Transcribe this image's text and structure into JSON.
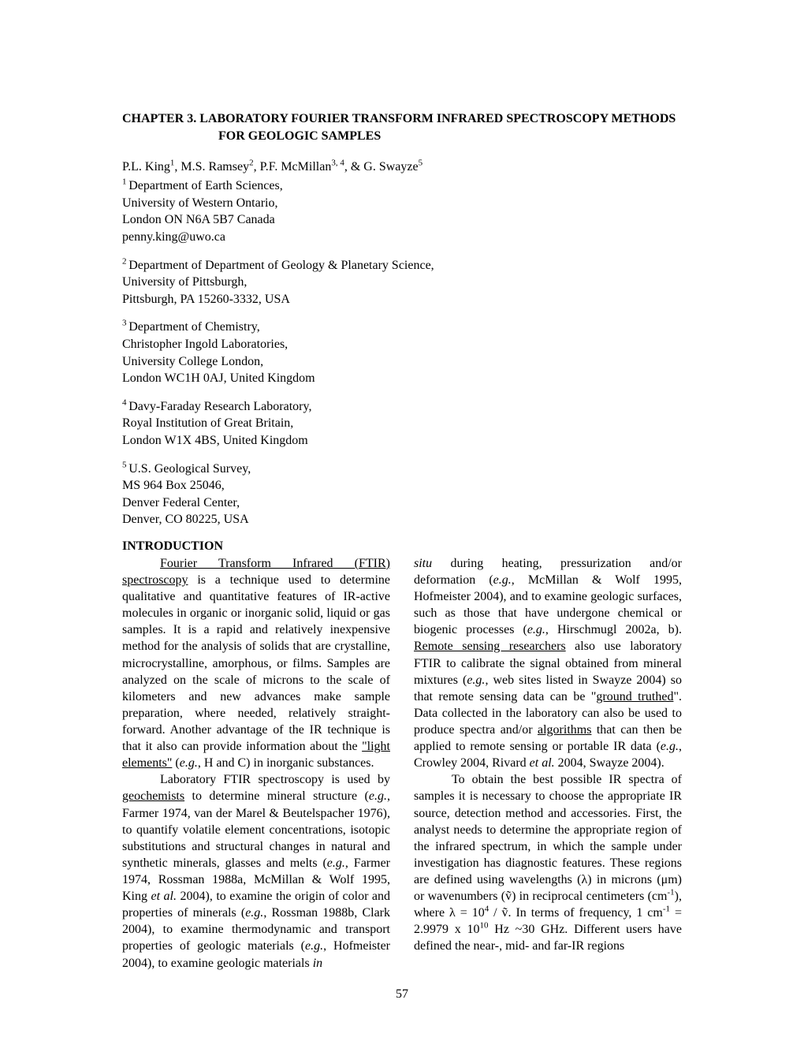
{
  "chapter": {
    "line1": "CHAPTER 3.   LABORATORY FOURIER TRANSFORM INFRARED SPECTROSCOPY METHODS",
    "line2": "FOR GEOLOGIC SAMPLES"
  },
  "authors": {
    "a1": "P.L. King",
    "s1": "1",
    "a2": ", M.S. Ramsey",
    "s2": "2",
    "a3": ", P.F. McMillan",
    "s3": "3, 4",
    "a4": ", & G. Swayze",
    "s4": "5"
  },
  "aff1": {
    "sup": "1 ",
    "l1": "Department of Earth Sciences,",
    "l2": "University of Western Ontario,",
    "l3": "London ON N6A 5B7 Canada",
    "l4": "penny.king@uwo.ca"
  },
  "aff2": {
    "sup": "2 ",
    "l1": "Department of Department of Geology & Planetary Science,",
    "l2": "University of Pittsburgh,",
    "l3": "Pittsburgh, PA 15260-3332, USA"
  },
  "aff3": {
    "sup": "3 ",
    "l1": "Department of Chemistry,",
    "l2": "Christopher Ingold Laboratories,",
    "l3": "University College London,",
    "l4": "London WC1H 0AJ, United Kingdom"
  },
  "aff4": {
    "sup": "4 ",
    "l1": "Davy-Faraday Research Laboratory,",
    "l2": "Royal Institution of Great Britain,",
    "l3": "London W1X 4BS, United Kingdom"
  },
  "aff5": {
    "sup": "5 ",
    "l1": "U.S. Geological Survey,",
    "l2": "MS 964 Box 25046,",
    "l3": "Denver Federal Center,",
    "l4": "Denver, CO 80225, USA"
  },
  "section": {
    "heading": "INTRODUCTION"
  },
  "col1": {
    "p1_u1": "Fourier Transform Infrared (FTIR) spectroscopy",
    "p1_t1": " is a technique used to determine qualitative and quantitative features of IR-active molecules in organic or inorganic solid, liquid or gas samples. It is a rapid and relatively inexpensive method for the analysis of solids that are crystalline, microcrystalline, amorphous, or films. Samples are analyzed on the scale of microns to the scale of kilometers and new advances make sample preparation, where needed, relatively straight-forward. Another advantage of the IR technique is that it also can provide information about the ",
    "p1_u2": "\"light elements\"",
    "p1_t2": " (",
    "p1_i1": "e.g.",
    "p1_t3": ", H and C) in inorganic substances.",
    "p2_t1": "Laboratory FTIR spectroscopy is used by ",
    "p2_u1": "geochemists",
    "p2_t2": " to determine mineral structure (",
    "p2_i1": "e.g.",
    "p2_t3": ", Farmer 1974, van der Marel & Beutelspacher 1976), to quantify volatile element concentrations, isotopic substitutions and structural changes in natural and synthetic minerals, glasses and melts (",
    "p2_i2": "e.g.",
    "p2_t4": ", Farmer 1974, Rossman 1988a, McMillan & Wolf 1995, King ",
    "p2_i3": "et al.",
    "p2_t5": " 2004), to examine the origin of color and properties of minerals (",
    "p2_i4": "e.g.",
    "p2_t6": ", Rossman 1988b, Clark 2004), to examine thermodynamic and transport properties of geologic materials (",
    "p2_i5": "e.g.",
    "p2_t7": ", Hofmeister 2004), to examine geologic materials ",
    "p2_i6": "in"
  },
  "col2": {
    "p1_i1": "situ",
    "p1_t1": " during heating, pressurization and/or deformation (",
    "p1_i2": "e.g.",
    "p1_t2": ", McMillan & Wolf 1995, Hofmeister 2004), and to examine geologic surfaces, such as those that have undergone chemical or biogenic processes (",
    "p1_i3": "e.g.",
    "p1_t3": ", Hirschmugl 2002a, b). ",
    "p1_u1": "Remote sensing researchers",
    "p1_t4": " also use laboratory FTIR to calibrate the signal obtained from mineral mixtures (",
    "p1_i4": "e.g.",
    "p1_t5": ", web sites listed in Swayze 2004) so that remote sensing data can be \"",
    "p1_u2": "ground truthed",
    "p1_t6": "\". Data collected in the laboratory can also be used to produce spectra and/or ",
    "p1_u3": "algorithms",
    "p1_t7": " that can then be applied to remote sensing or portable IR data (",
    "p1_i5": "e.g.",
    "p1_t8": ", Crowley 2004, Rivard ",
    "p1_i6": "et al.",
    "p1_t9": " 2004, Swayze 2004).",
    "p2_t1": "To obtain the best possible IR spectra of samples it is necessary to choose the appropriate IR source, detection method and accessories. First, the analyst needs to determine the appropriate region of the infrared spectrum, in which the sample under investigation has diagnostic features. These regions are defined using wavelengths (λ) in microns (μm) or wavenumbers (ṽ) in reciprocal centimeters (cm",
    "p2_s1": "-1",
    "p2_t2": "), where λ = 10",
    "p2_s2": "4",
    "p2_t3": " / ṽ. In terms of frequency, 1 cm",
    "p2_s3": "-1",
    "p2_t4": " = 2.9979 x 10",
    "p2_s4": "10",
    "p2_t5": " Hz ~30 GHz. Different users have defined the near-, mid- and far-IR regions"
  },
  "page_number": "57"
}
